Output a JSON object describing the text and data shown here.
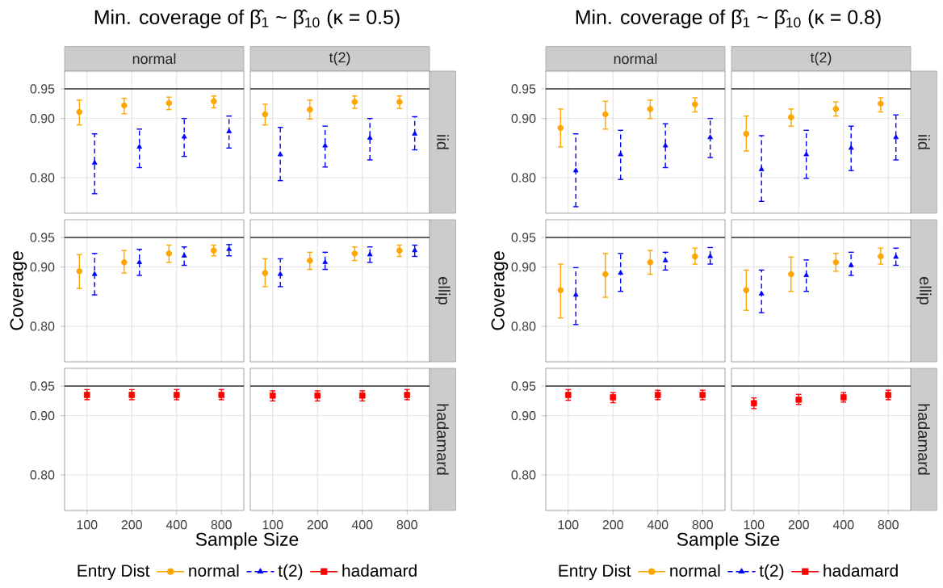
{
  "chart_data": [
    {
      "type": "scatter",
      "title": "Min. coverage of β̂$_{1}$ ~ β̂$_{10}$ (κ = 0.5)",
      "subtitle": "normal",
      "categories": [
        "100",
        "200",
        "400",
        "800"
      ],
      "tick_labels": "y",
      "grid": true,
      "ylim": [
        0.74,
        0.98
      ],
      "yticks": [
        {
          "value": 0.8,
          "label": "0.80"
        },
        {
          "value": 0.9,
          "label": "0.90"
        },
        {
          "value": 0.95,
          "label": "0.95"
        }
      ],
      "ref_lines": [
        {
          "axis": "y",
          "value": 0.95
        }
      ],
      "series": [
        {
          "color": "#ffa500",
          "marker": "circle",
          "line_style": "solid",
          "values": [
            0.911,
            0.922,
            0.926,
            0.929
          ],
          "errors": [
            [
              0.889,
              0.931
            ],
            [
              0.908,
              0.934
            ],
            [
              0.915,
              0.936
            ],
            [
              0.918,
              0.938
            ]
          ]
        },
        {
          "color": "#0000ff",
          "marker": "triangle",
          "line_style": "dashed",
          "values": [
            0.825,
            0.852,
            0.869,
            0.878
          ],
          "errors": [
            [
              0.773,
              0.874
            ],
            [
              0.817,
              0.882
            ],
            [
              0.836,
              0.9
            ],
            [
              0.85,
              0.904
            ]
          ]
        }
      ]
    },
    {
      "type": "scatter",
      "subtitle": "t(2)",
      "y2label": "iid",
      "categories": [
        "100",
        "200",
        "400",
        "800"
      ],
      "tick_labels": false,
      "grid": true,
      "ylim": [
        0.74,
        0.98
      ],
      "yticks": [
        0.8,
        0.9,
        0.95
      ],
      "ref_lines": [
        {
          "axis": "y",
          "value": 0.95
        }
      ],
      "series": [
        {
          "color": "#ffa500",
          "marker": "circle",
          "line_style": "solid",
          "values": [
            0.907,
            0.915,
            0.928,
            0.928
          ],
          "errors": [
            [
              0.889,
              0.924
            ],
            [
              0.899,
              0.931
            ],
            [
              0.917,
              0.938
            ],
            [
              0.917,
              0.938
            ]
          ]
        },
        {
          "color": "#0000ff",
          "marker": "triangle",
          "line_style": "dashed",
          "values": [
            0.839,
            0.854,
            0.867,
            0.874
          ],
          "errors": [
            [
              0.795,
              0.885
            ],
            [
              0.818,
              0.887
            ],
            [
              0.83,
              0.9
            ],
            [
              0.847,
              0.903
            ]
          ]
        }
      ]
    },
    {
      "type": "scatter",
      "ylabel": "Coverage",
      "categories": [
        "100",
        "200",
        "400",
        "800"
      ],
      "tick_labels": "y",
      "grid": true,
      "ylim": [
        0.74,
        0.98
      ],
      "yticks": [
        {
          "value": 0.8,
          "label": "0.80"
        },
        {
          "value": 0.9,
          "label": "0.90"
        },
        {
          "value": 0.95,
          "label": "0.95"
        }
      ],
      "ref_lines": [
        {
          "axis": "y",
          "value": 0.95
        }
      ],
      "series": [
        {
          "color": "#ffa500",
          "marker": "circle",
          "line_style": "solid",
          "values": [
            0.893,
            0.908,
            0.923,
            0.928
          ],
          "errors": [
            [
              0.864,
              0.921
            ],
            [
              0.89,
              0.928
            ],
            [
              0.908,
              0.937
            ],
            [
              0.919,
              0.937
            ]
          ]
        },
        {
          "color": "#0000ff",
          "marker": "triangle",
          "line_style": "dashed",
          "values": [
            0.888,
            0.908,
            0.919,
            0.93
          ],
          "errors": [
            [
              0.853,
              0.923
            ],
            [
              0.886,
              0.93
            ],
            [
              0.903,
              0.934
            ],
            [
              0.919,
              0.938
            ]
          ]
        }
      ]
    },
    {
      "type": "scatter",
      "y2label": "ellip",
      "categories": [
        "100",
        "200",
        "400",
        "800"
      ],
      "tick_labels": false,
      "grid": true,
      "ylim": [
        0.74,
        0.98
      ],
      "yticks": [
        0.8,
        0.9,
        0.95
      ],
      "ref_lines": [
        {
          "axis": "y",
          "value": 0.95
        }
      ],
      "series": [
        {
          "color": "#ffa500",
          "marker": "circle",
          "line_style": "solid",
          "values": [
            0.89,
            0.911,
            0.923,
            0.928
          ],
          "errors": [
            [
              0.867,
              0.914
            ],
            [
              0.896,
              0.925
            ],
            [
              0.911,
              0.934
            ],
            [
              0.918,
              0.937
            ]
          ]
        },
        {
          "color": "#0000ff",
          "marker": "triangle",
          "line_style": "dashed",
          "values": [
            0.888,
            0.908,
            0.921,
            0.928
          ],
          "errors": [
            [
              0.867,
              0.914
            ],
            [
              0.896,
              0.925
            ],
            [
              0.908,
              0.934
            ],
            [
              0.918,
              0.937
            ]
          ]
        }
      ]
    },
    {
      "type": "scatter",
      "xlabel": "Sample Size",
      "legend_title": "Entry Dist",
      "legend": "bottom",
      "categories": [
        "100",
        "200",
        "400",
        "800"
      ],
      "grid": true,
      "ylim": [
        0.74,
        0.98
      ],
      "yticks": [
        {
          "value": 0.8,
          "label": "0.80"
        },
        {
          "value": 0.9,
          "label": "0.90"
        },
        {
          "value": 0.95,
          "label": "0.95"
        }
      ],
      "ref_lines": [
        {
          "axis": "y",
          "value": 0.95
        }
      ],
      "series": [
        {
          "name": "normal",
          "color": "#ffa500",
          "marker": "circle",
          "line_style": "solid",
          "values": [
            null,
            null,
            null,
            null
          ]
        },
        {
          "name": "t(2)",
          "color": "#0000ff",
          "marker": "triangle",
          "line_style": "dashed",
          "values": [
            null,
            null,
            null,
            null
          ]
        },
        {
          "name": "hadamard",
          "color": "#ff0000",
          "marker": "square",
          "line_style": "solid",
          "values": [
            0.935,
            0.935,
            0.935,
            0.935
          ],
          "errors": [
            [
              0.927,
              0.944
            ],
            [
              0.927,
              0.944
            ],
            [
              0.927,
              0.944
            ],
            [
              0.927,
              0.944
            ]
          ]
        }
      ]
    },
    {
      "type": "scatter",
      "y2label": "hadamard",
      "categories": [
        "100",
        "200",
        "400",
        "800"
      ],
      "tick_labels": "x",
      "grid": true,
      "ylim": [
        0.74,
        0.98
      ],
      "yticks": [
        0.8,
        0.9,
        0.95
      ],
      "ref_lines": [
        {
          "axis": "y",
          "value": 0.95
        }
      ],
      "series": [
        {
          "color": "#ff0000",
          "marker": "square",
          "line_style": "solid",
          "values": [
            0.934,
            0.934,
            0.934,
            0.935
          ],
          "errors": [
            [
              0.925,
              0.942
            ],
            [
              0.925,
              0.942
            ],
            [
              0.925,
              0.942
            ],
            [
              0.927,
              0.944
            ]
          ]
        }
      ]
    },
    {
      "type": "scatter",
      "title": "Min. coverage of β̂$_{1}$ ~ β̂$_{10}$ (κ = 0.8)",
      "subtitle": "normal",
      "categories": [
        "100",
        "200",
        "400",
        "800"
      ],
      "tick_labels": "y",
      "grid": true,
      "ylim": [
        0.74,
        0.98
      ],
      "yticks": [
        {
          "value": 0.8,
          "label": "0.80"
        },
        {
          "value": 0.9,
          "label": "0.90"
        },
        {
          "value": 0.95,
          "label": "0.95"
        }
      ],
      "ref_lines": [
        {
          "axis": "y",
          "value": 0.95
        }
      ],
      "series": [
        {
          "color": "#ffa500",
          "marker": "circle",
          "line_style": "solid",
          "values": [
            0.884,
            0.907,
            0.916,
            0.924
          ],
          "errors": [
            [
              0.852,
              0.916
            ],
            [
              0.882,
              0.929
            ],
            [
              0.9,
              0.931
            ],
            [
              0.911,
              0.935
            ]
          ]
        },
        {
          "color": "#0000ff",
          "marker": "triangle",
          "line_style": "dashed",
          "values": [
            0.812,
            0.839,
            0.854,
            0.868
          ],
          "errors": [
            [
              0.751,
              0.874
            ],
            [
              0.797,
              0.88
            ],
            [
              0.817,
              0.891
            ],
            [
              0.834,
              0.9
            ]
          ]
        }
      ]
    },
    {
      "type": "scatter",
      "subtitle": "t(2)",
      "y2label": "iid",
      "categories": [
        "100",
        "200",
        "400",
        "800"
      ],
      "tick_labels": false,
      "grid": true,
      "ylim": [
        0.74,
        0.98
      ],
      "yticks": [
        0.8,
        0.9,
        0.95
      ],
      "ref_lines": [
        {
          "axis": "y",
          "value": 0.95
        }
      ],
      "series": [
        {
          "color": "#ffa500",
          "marker": "circle",
          "line_style": "solid",
          "values": [
            0.874,
            0.902,
            0.916,
            0.925
          ],
          "errors": [
            [
              0.845,
              0.904
            ],
            [
              0.887,
              0.916
            ],
            [
              0.904,
              0.928
            ],
            [
              0.911,
              0.935
            ]
          ]
        },
        {
          "color": "#0000ff",
          "marker": "triangle",
          "line_style": "dashed",
          "values": [
            0.814,
            0.839,
            0.85,
            0.868
          ],
          "errors": [
            [
              0.76,
              0.871
            ],
            [
              0.799,
              0.88
            ],
            [
              0.812,
              0.887
            ],
            [
              0.83,
              0.906
            ]
          ]
        }
      ]
    },
    {
      "type": "scatter",
      "ylabel": "Coverage",
      "categories": [
        "100",
        "200",
        "400",
        "800"
      ],
      "tick_labels": "y",
      "grid": true,
      "ylim": [
        0.74,
        0.98
      ],
      "yticks": [
        {
          "value": 0.8,
          "label": "0.80"
        },
        {
          "value": 0.9,
          "label": "0.90"
        },
        {
          "value": 0.95,
          "label": "0.95"
        }
      ],
      "ref_lines": [
        {
          "axis": "y",
          "value": 0.95
        }
      ],
      "series": [
        {
          "color": "#ffa500",
          "marker": "circle",
          "line_style": "solid",
          "values": [
            0.861,
            0.888,
            0.908,
            0.918
          ],
          "errors": [
            [
              0.814,
              0.905
            ],
            [
              0.849,
              0.923
            ],
            [
              0.888,
              0.928
            ],
            [
              0.905,
              0.932
            ]
          ]
        },
        {
          "color": "#0000ff",
          "marker": "triangle",
          "line_style": "dashed",
          "values": [
            0.853,
            0.89,
            0.911,
            0.918
          ],
          "errors": [
            [
              0.803,
              0.899
            ],
            [
              0.859,
              0.923
            ],
            [
              0.895,
              0.925
            ],
            [
              0.905,
              0.933
            ]
          ]
        }
      ]
    },
    {
      "type": "scatter",
      "y2label": "ellip",
      "categories": [
        "100",
        "200",
        "400",
        "800"
      ],
      "tick_labels": false,
      "grid": true,
      "ylim": [
        0.74,
        0.98
      ],
      "yticks": [
        0.8,
        0.9,
        0.95
      ],
      "ref_lines": [
        {
          "axis": "y",
          "value": 0.95
        }
      ],
      "series": [
        {
          "color": "#ffa500",
          "marker": "circle",
          "line_style": "solid",
          "values": [
            0.861,
            0.888,
            0.908,
            0.918
          ],
          "errors": [
            [
              0.827,
              0.895
            ],
            [
              0.859,
              0.917
            ],
            [
              0.893,
              0.923
            ],
            [
              0.905,
              0.932
            ]
          ]
        },
        {
          "color": "#0000ff",
          "marker": "triangle",
          "line_style": "dashed",
          "values": [
            0.855,
            0.886,
            0.903,
            0.917
          ],
          "errors": [
            [
              0.823,
              0.895
            ],
            [
              0.859,
              0.912
            ],
            [
              0.886,
              0.925
            ],
            [
              0.903,
              0.932
            ]
          ]
        }
      ]
    },
    {
      "type": "scatter",
      "xlabel": "Sample Size",
      "legend_title": "Entry Dist",
      "legend": "bottom",
      "categories": [
        "100",
        "200",
        "400",
        "800"
      ],
      "grid": true,
      "ylim": [
        0.74,
        0.98
      ],
      "yticks": [
        {
          "value": 0.8,
          "label": "0.80"
        },
        {
          "value": 0.9,
          "label": "0.90"
        },
        {
          "value": 0.95,
          "label": "0.95"
        }
      ],
      "ref_lines": [
        {
          "axis": "y",
          "value": 0.95
        }
      ],
      "series": [
        {
          "name": "normal",
          "color": "#ffa500",
          "marker": "circle",
          "line_style": "solid",
          "values": [
            null,
            null,
            null,
            null
          ]
        },
        {
          "name": "t(2)",
          "color": "#0000ff",
          "marker": "triangle",
          "line_style": "dashed",
          "values": [
            null,
            null,
            null,
            null
          ]
        },
        {
          "name": "hadamard",
          "color": "#ff0000",
          "marker": "square",
          "line_style": "solid",
          "values": [
            0.935,
            0.931,
            0.935,
            0.935
          ],
          "errors": [
            [
              0.926,
              0.944
            ],
            [
              0.922,
              0.939
            ],
            [
              0.927,
              0.943
            ],
            [
              0.927,
              0.943
            ]
          ]
        }
      ]
    },
    {
      "type": "scatter",
      "y2label": "hadamard",
      "categories": [
        "100",
        "200",
        "400",
        "800"
      ],
      "tick_labels": "x",
      "grid": true,
      "ylim": [
        0.74,
        0.98
      ],
      "yticks": [
        0.8,
        0.9,
        0.95
      ],
      "ref_lines": [
        {
          "axis": "y",
          "value": 0.95
        }
      ],
      "series": [
        {
          "color": "#ff0000",
          "marker": "square",
          "line_style": "solid",
          "values": [
            0.921,
            0.927,
            0.931,
            0.935
          ],
          "errors": [
            [
              0.912,
              0.93
            ],
            [
              0.919,
              0.936
            ],
            [
              0.923,
              0.939
            ],
            [
              0.927,
              0.943
            ]
          ]
        }
      ]
    }
  ]
}
